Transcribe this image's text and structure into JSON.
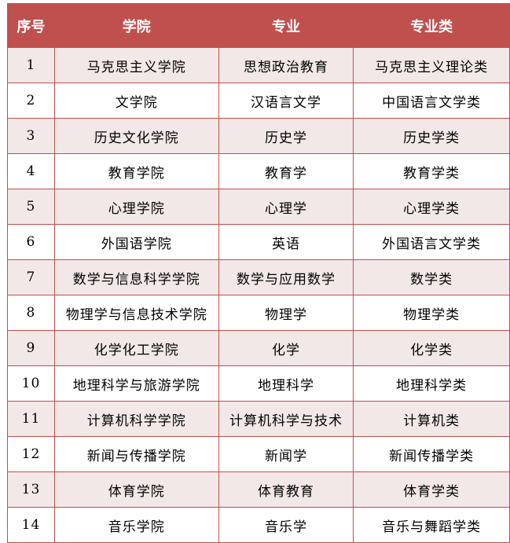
{
  "header": {
    "no": "序号",
    "college": "学院",
    "major": "专业",
    "category": "专业类"
  },
  "colors": {
    "header_bg": "#C0504D",
    "alt_row": "#F2E8E8",
    "border": "#C0504D"
  },
  "rows": [
    [
      "1",
      "马克思主义学院",
      "思想政治教育",
      "马克思主义理论类"
    ],
    [
      "2",
      "文学院",
      "汉语言文学",
      "中国语言文学类"
    ],
    [
      "3",
      "历史文化学院",
      "历史学",
      "历史学类"
    ],
    [
      "4",
      "教育学院",
      "教育学",
      "教育学类"
    ],
    [
      "5",
      "心理学院",
      "心理学",
      "心理学类"
    ],
    [
      "6",
      "外国语学院",
      "英语",
      "外国语言文学类"
    ],
    [
      "7",
      "数学与信息科学学院",
      "数学与应用数学",
      "数学类"
    ],
    [
      "8",
      "物理学与信息技术学院",
      "物理学",
      "物理学类"
    ],
    [
      "9",
      "化学化工学院",
      "化学",
      "化学类"
    ],
    [
      "10",
      "地理科学与旅游学院",
      "地理科学",
      "地理科学类"
    ],
    [
      "11",
      "计算机科学学院",
      "计算机科学与技术",
      "计算机类"
    ],
    [
      "12",
      "新闻与传播学院",
      "新闻学",
      "新闻传播学类"
    ],
    [
      "13",
      "体育学院",
      "体育教育",
      "体育学类"
    ],
    [
      "14",
      "音乐学院",
      "音乐学",
      "音乐与舞蹈学类"
    ]
  ]
}
